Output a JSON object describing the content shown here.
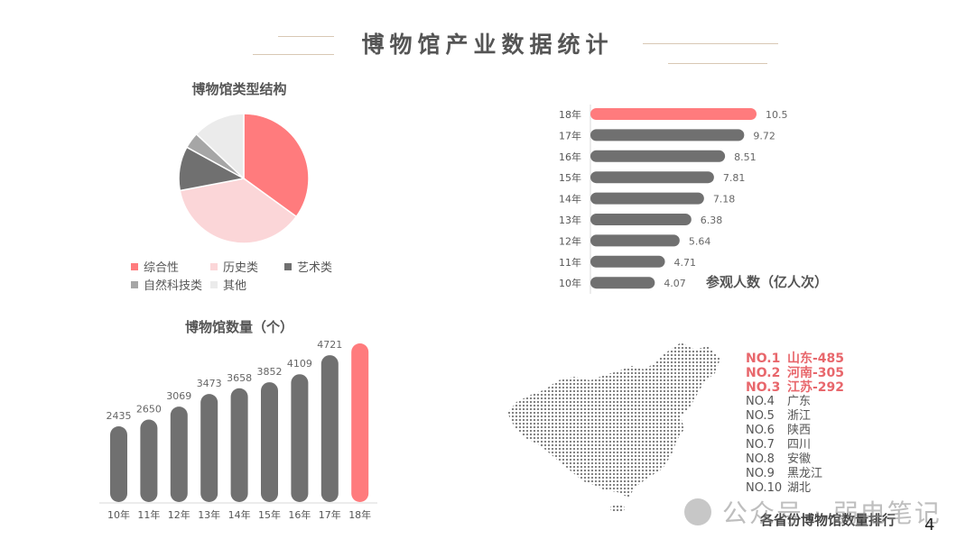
{
  "header": {
    "title": "博物馆产业数据统计"
  },
  "colors": {
    "accent": "#ff7b7d",
    "dark_bar": "#707070",
    "pie": [
      "#ff7b7d",
      "#fbd6d8",
      "#707070",
      "#a6a6a6",
      "#ebebeb"
    ]
  },
  "page_number": "4",
  "map": {
    "caption": "各省份博物馆数量排行",
    "ranking": [
      {
        "no": "NO.1",
        "name": "山东-485",
        "highlight": true
      },
      {
        "no": "NO.2",
        "name": "河南-305",
        "highlight": true
      },
      {
        "no": "NO.3",
        "name": "江苏-292",
        "highlight": true
      },
      {
        "no": "NO.4",
        "name": "广东",
        "highlight": false
      },
      {
        "no": "NO.5",
        "name": "浙江",
        "highlight": false
      },
      {
        "no": "NO.6",
        "name": "陕西",
        "highlight": false
      },
      {
        "no": "NO.7",
        "name": "四川",
        "highlight": false
      },
      {
        "no": "NO.8",
        "name": "安徽",
        "highlight": false
      },
      {
        "no": "NO.9",
        "name": "黑龙江",
        "highlight": false
      },
      {
        "no": "NO.10",
        "name": "湖北",
        "highlight": false
      }
    ]
  },
  "watermark": {
    "text": "公众号 · 弱电笔记"
  },
  "chart_data": [
    {
      "type": "pie",
      "title": "博物馆类型结构",
      "categories": [
        "综合性",
        "历史类",
        "艺术类",
        "自然科技类",
        "其他"
      ],
      "values": [
        35,
        37,
        11,
        4,
        13
      ],
      "legend": "bottom"
    },
    {
      "type": "bar",
      "orientation": "horizontal",
      "title": "参观人数（亿人次）",
      "categories": [
        "18年",
        "17年",
        "16年",
        "15年",
        "14年",
        "13年",
        "12年",
        "11年",
        "10年"
      ],
      "values": [
        10.5,
        9.72,
        8.51,
        7.81,
        7.18,
        6.38,
        5.64,
        4.71,
        4.07
      ],
      "labels": [
        "10.5",
        "9.72",
        "8.51",
        "7.81",
        "7.18",
        "6.38",
        "5.64",
        "4.71",
        "4.07"
      ],
      "highlight_index": 0
    },
    {
      "type": "bar",
      "title": "博物馆数量（个）",
      "categories": [
        "10年",
        "11年",
        "12年",
        "13年",
        "14年",
        "15年",
        "16年",
        "17年",
        "18年"
      ],
      "values": [
        2435,
        2650,
        3069,
        3473,
        3658,
        3852,
        4109,
        4721,
        5100
      ],
      "highlight_index": 8
    }
  ]
}
